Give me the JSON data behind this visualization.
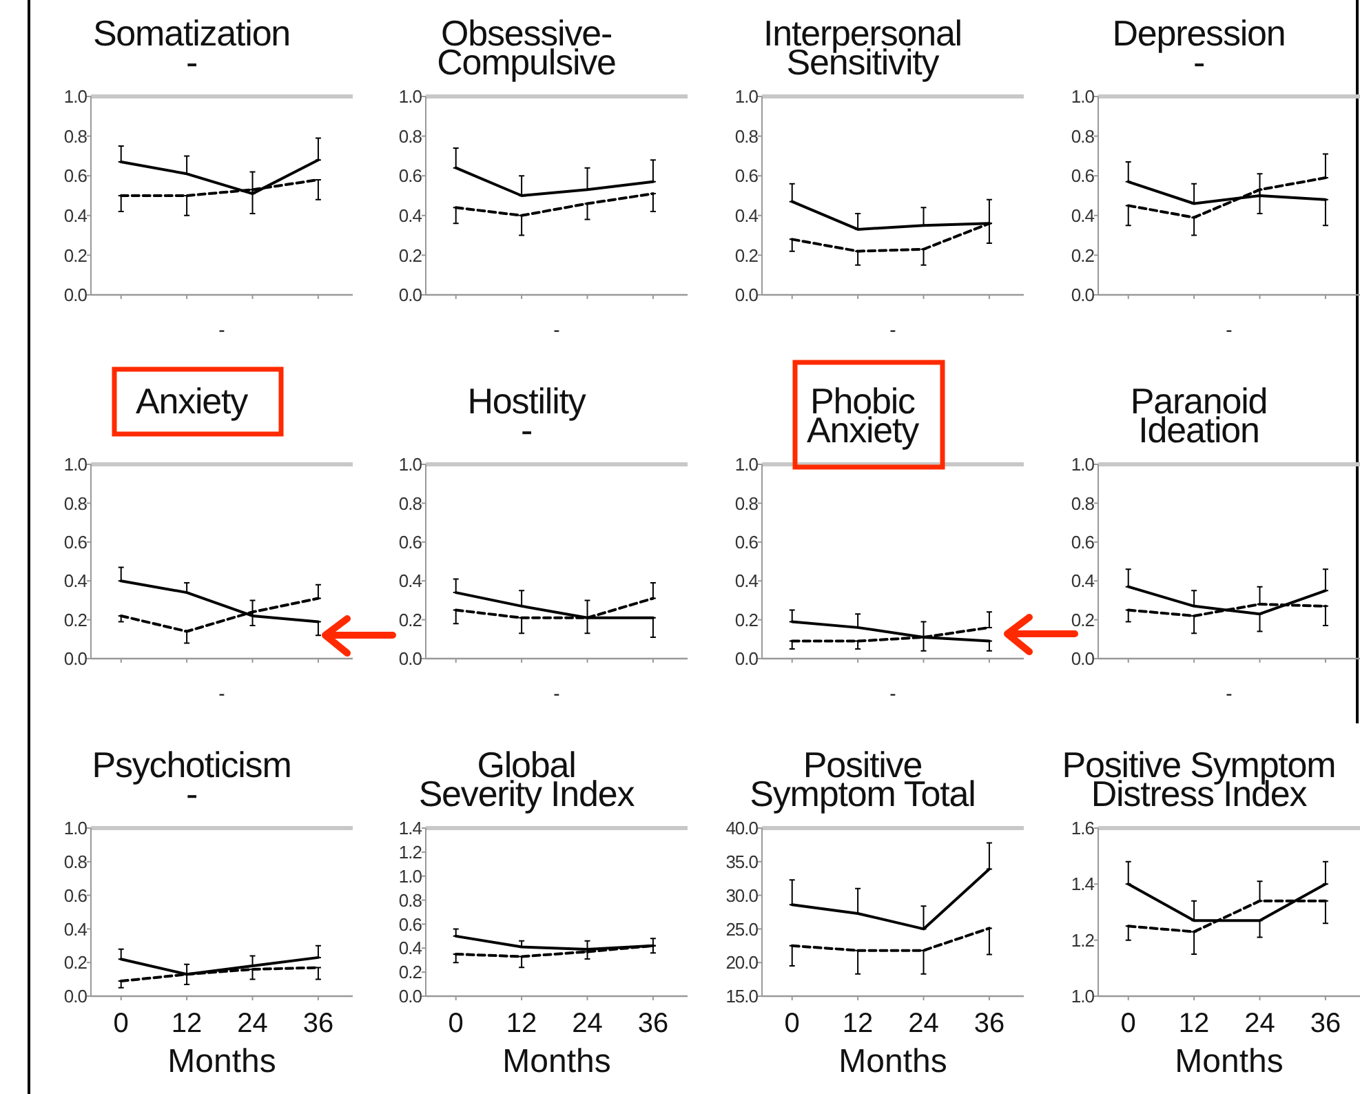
{
  "chart_data": [
    {
      "type": "line",
      "title": "Somatization\n-",
      "xlabel": "-",
      "x": [
        0,
        12,
        24,
        36
      ],
      "xlim": [
        -5.5,
        42.3
      ],
      "xticks": [
        0,
        12,
        24,
        36
      ],
      "tick_labels": "y",
      "ylim": [
        0,
        1
      ],
      "yticks": [
        {
          "value": 0,
          "label": "0.0"
        },
        0.2,
        0.4,
        0.6,
        0.8,
        {
          "value": 1,
          "label": "1.0"
        }
      ],
      "series": [
        {
          "color": "#000000",
          "line_style": "solid",
          "values": [
            0.67,
            0.61,
            0.51,
            0.68
          ],
          "errors": [
            [
              0.67,
              0.75
            ],
            [
              0.61,
              0.7
            ],
            [
              0.51,
              0.62
            ],
            [
              0.68,
              0.79
            ]
          ]
        },
        {
          "color": "#000000",
          "line_style": "dashed",
          "values": [
            0.5,
            0.5,
            0.53,
            0.58
          ],
          "errors": [
            [
              0.42,
              0.5
            ],
            [
              0.4,
              0.5
            ],
            [
              0.41,
              0.53
            ],
            [
              0.48,
              0.58
            ]
          ]
        }
      ]
    },
    {
      "type": "line",
      "title": "Obsessive-\nCompulsive",
      "xlabel": "-",
      "x": [
        0,
        12,
        24,
        36
      ],
      "xlim": [
        -5.5,
        42.3
      ],
      "xticks": [
        0,
        12,
        24,
        36
      ],
      "tick_labels": "y",
      "ylim": [
        0,
        1
      ],
      "yticks": [
        {
          "value": 0,
          "label": "0.0"
        },
        0.2,
        0.4,
        0.6,
        0.8,
        {
          "value": 1,
          "label": "1.0"
        }
      ],
      "series": [
        {
          "color": "#000000",
          "line_style": "solid",
          "values": [
            0.64,
            0.5,
            0.53,
            0.57
          ],
          "errors": [
            [
              0.64,
              0.74
            ],
            [
              0.5,
              0.6
            ],
            [
              0.53,
              0.64
            ],
            [
              0.57,
              0.68
            ]
          ]
        },
        {
          "color": "#000000",
          "line_style": "dashed",
          "values": [
            0.44,
            0.4,
            0.46,
            0.51
          ],
          "errors": [
            [
              0.36,
              0.44
            ],
            [
              0.3,
              0.4
            ],
            [
              0.38,
              0.46
            ],
            [
              0.42,
              0.51
            ]
          ]
        }
      ]
    },
    {
      "type": "line",
      "title": "Interpersonal\nSensitivity",
      "xlabel": "-",
      "x": [
        0,
        12,
        24,
        36
      ],
      "xlim": [
        -5.5,
        42.3
      ],
      "xticks": [
        0,
        12,
        24,
        36
      ],
      "tick_labels": "y",
      "ylim": [
        0,
        1
      ],
      "yticks": [
        {
          "value": 0,
          "label": "0.0"
        },
        0.2,
        0.4,
        0.6,
        0.8,
        {
          "value": 1,
          "label": "1.0"
        }
      ],
      "series": [
        {
          "color": "#000000",
          "line_style": "solid",
          "values": [
            0.47,
            0.33,
            0.35,
            0.36
          ],
          "errors": [
            [
              0.47,
              0.56
            ],
            [
              0.33,
              0.41
            ],
            [
              0.35,
              0.44
            ],
            [
              0.36,
              0.48
            ]
          ]
        },
        {
          "color": "#000000",
          "line_style": "dashed",
          "values": [
            0.28,
            0.22,
            0.23,
            0.36
          ],
          "errors": [
            [
              0.22,
              0.28
            ],
            [
              0.15,
              0.22
            ],
            [
              0.15,
              0.23
            ],
            [
              0.26,
              0.36
            ]
          ]
        }
      ]
    },
    {
      "type": "line",
      "title": "Depression\n-",
      "xlabel": "-",
      "x": [
        0,
        12,
        24,
        36
      ],
      "xlim": [
        -5.5,
        42.3
      ],
      "xticks": [
        0,
        12,
        24,
        36
      ],
      "tick_labels": "y",
      "ylim": [
        0,
        1
      ],
      "yticks": [
        {
          "value": 0,
          "label": "0.0"
        },
        0.2,
        0.4,
        0.6,
        0.8,
        {
          "value": 1,
          "label": "1.0"
        }
      ],
      "series": [
        {
          "color": "#000000",
          "line_style": "solid",
          "values": [
            0.57,
            0.46,
            0.5,
            0.48
          ],
          "errors": [
            [
              0.57,
              0.67
            ],
            [
              0.46,
              0.56
            ],
            [
              0.5,
              0.61
            ],
            [
              0.35,
              0.48
            ]
          ]
        },
        {
          "color": "#000000",
          "line_style": "dashed",
          "values": [
            0.45,
            0.39,
            0.53,
            0.59
          ],
          "errors": [
            [
              0.35,
              0.45
            ],
            [
              0.3,
              0.39
            ],
            [
              0.41,
              0.53
            ],
            [
              0.59,
              0.71
            ]
          ]
        }
      ]
    },
    {
      "type": "line",
      "title": "Anxiety",
      "xlabel": "-",
      "x": [
        0,
        12,
        24,
        36
      ],
      "xlim": [
        -5.5,
        42.3
      ],
      "xticks": [
        0,
        12,
        24,
        36
      ],
      "tick_labels": "y",
      "ylim": [
        0,
        1
      ],
      "yticks": [
        {
          "value": 0,
          "label": "0.0"
        },
        0.2,
        0.4,
        0.6,
        0.8,
        {
          "value": 1,
          "label": "1.0"
        }
      ],
      "series": [
        {
          "color": "#000000",
          "line_style": "solid",
          "values": [
            0.4,
            0.34,
            0.22,
            0.19
          ],
          "errors": [
            [
              0.4,
              0.47
            ],
            [
              0.34,
              0.39
            ],
            [
              0.22,
              0.3
            ],
            [
              0.12,
              0.19
            ]
          ]
        },
        {
          "color": "#000000",
          "line_style": "dashed",
          "values": [
            0.22,
            0.14,
            0.24,
            0.31
          ],
          "errors": [
            [
              0.19,
              0.22
            ],
            [
              0.08,
              0.14
            ],
            [
              0.17,
              0.24
            ],
            [
              0.31,
              0.38
            ]
          ]
        }
      ]
    },
    {
      "type": "line",
      "title": "Hostility\n-",
      "xlabel": "-",
      "x": [
        0,
        12,
        24,
        36
      ],
      "xlim": [
        -5.5,
        42.3
      ],
      "xticks": [
        0,
        12,
        24,
        36
      ],
      "tick_labels": "y",
      "ylim": [
        0,
        1
      ],
      "yticks": [
        {
          "value": 0,
          "label": "0.0"
        },
        0.2,
        0.4,
        0.6,
        0.8,
        {
          "value": 1,
          "label": "1.0"
        }
      ],
      "series": [
        {
          "color": "#000000",
          "line_style": "solid",
          "values": [
            0.34,
            0.27,
            0.21,
            0.21
          ],
          "errors": [
            [
              0.34,
              0.41
            ],
            [
              0.27,
              0.35
            ],
            [
              0.21,
              0.3
            ],
            [
              0.11,
              0.21
            ]
          ]
        },
        {
          "color": "#000000",
          "line_style": "dashed",
          "values": [
            0.25,
            0.21,
            0.21,
            0.31
          ],
          "errors": [
            [
              0.18,
              0.25
            ],
            [
              0.13,
              0.21
            ],
            [
              0.13,
              0.21
            ],
            [
              0.31,
              0.39
            ]
          ]
        }
      ]
    },
    {
      "type": "line",
      "title": "Phobic\nAnxiety",
      "xlabel": "-",
      "x": [
        0,
        12,
        24,
        36
      ],
      "xlim": [
        -5.5,
        42.3
      ],
      "xticks": [
        0,
        12,
        24,
        36
      ],
      "tick_labels": "y",
      "ylim": [
        0,
        1
      ],
      "yticks": [
        {
          "value": 0,
          "label": "0.0"
        },
        0.2,
        0.4,
        0.6,
        0.8,
        {
          "value": 1,
          "label": "1.0"
        }
      ],
      "series": [
        {
          "color": "#000000",
          "line_style": "solid",
          "values": [
            0.19,
            0.16,
            0.11,
            0.09
          ],
          "errors": [
            [
              0.19,
              0.25
            ],
            [
              0.16,
              0.23
            ],
            [
              0.11,
              0.19
            ],
            [
              0.04,
              0.09
            ]
          ]
        },
        {
          "color": "#000000",
          "line_style": "dashed",
          "values": [
            0.09,
            0.09,
            0.11,
            0.16
          ],
          "errors": [
            [
              0.05,
              0.09
            ],
            [
              0.05,
              0.09
            ],
            [
              0.04,
              0.11
            ],
            [
              0.16,
              0.24
            ]
          ]
        }
      ]
    },
    {
      "type": "line",
      "title": "Paranoid\nIdeation",
      "xlabel": "-",
      "x": [
        0,
        12,
        24,
        36
      ],
      "xlim": [
        -5.5,
        42.3
      ],
      "xticks": [
        0,
        12,
        24,
        36
      ],
      "tick_labels": "y",
      "ylim": [
        0,
        1
      ],
      "yticks": [
        {
          "value": 0,
          "label": "0.0"
        },
        0.2,
        0.4,
        0.6,
        0.8,
        {
          "value": 1,
          "label": "1.0"
        }
      ],
      "series": [
        {
          "color": "#000000",
          "line_style": "solid",
          "values": [
            0.37,
            0.27,
            0.23,
            0.35
          ],
          "errors": [
            [
              0.37,
              0.46
            ],
            [
              0.27,
              0.35
            ],
            [
              0.14,
              0.23
            ],
            [
              0.35,
              0.46
            ]
          ]
        },
        {
          "color": "#000000",
          "line_style": "dashed",
          "values": [
            0.25,
            0.22,
            0.28,
            0.27
          ],
          "errors": [
            [
              0.19,
              0.25
            ],
            [
              0.13,
              0.22
            ],
            [
              0.28,
              0.37
            ],
            [
              0.17,
              0.27
            ]
          ]
        }
      ]
    },
    {
      "type": "line",
      "title": "Psychoticism\n-",
      "xlabel": "Months",
      "x": [
        0,
        12,
        24,
        36
      ],
      "xlim": [
        -5.5,
        42.3
      ],
      "xticks": [
        0,
        12,
        24,
        36
      ],
      "ylim": [
        0,
        1
      ],
      "yticks": [
        {
          "value": 0,
          "label": "0.0"
        },
        0.2,
        0.4,
        0.6,
        0.8,
        {
          "value": 1,
          "label": "1.0"
        }
      ],
      "series": [
        {
          "color": "#000000",
          "line_style": "solid",
          "values": [
            0.22,
            0.13,
            0.18,
            0.23
          ],
          "errors": [
            [
              0.22,
              0.28
            ],
            [
              0.13,
              0.19
            ],
            [
              0.18,
              0.24
            ],
            [
              0.23,
              0.3
            ]
          ]
        },
        {
          "color": "#000000",
          "line_style": "dashed",
          "values": [
            0.09,
            0.13,
            0.16,
            0.17
          ],
          "errors": [
            [
              0.05,
              0.09
            ],
            [
              0.07,
              0.13
            ],
            [
              0.1,
              0.16
            ],
            [
              0.1,
              0.17
            ]
          ]
        }
      ]
    },
    {
      "type": "line",
      "title": "Global\nSeverity Index",
      "xlabel": "Months",
      "x": [
        0,
        12,
        24,
        36
      ],
      "xlim": [
        -5.5,
        42.3
      ],
      "xticks": [
        0,
        12,
        24,
        36
      ],
      "ylim": [
        0,
        1.4
      ],
      "yticks": [
        {
          "value": 0,
          "label": "0.0"
        },
        0.2,
        0.4,
        0.6,
        0.8,
        {
          "value": 1,
          "label": "1.0"
        },
        1.2,
        1.4
      ],
      "series": [
        {
          "color": "#000000",
          "line_style": "solid",
          "values": [
            0.5,
            0.41,
            0.39,
            0.42
          ],
          "errors": [
            [
              0.5,
              0.56
            ],
            [
              0.41,
              0.46
            ],
            [
              0.39,
              0.46
            ],
            [
              0.42,
              0.48
            ]
          ]
        },
        {
          "color": "#000000",
          "line_style": "dashed",
          "values": [
            0.35,
            0.33,
            0.37,
            0.42
          ],
          "errors": [
            [
              0.28,
              0.35
            ],
            [
              0.24,
              0.33
            ],
            [
              0.31,
              0.37
            ],
            [
              0.36,
              0.42
            ]
          ]
        }
      ]
    },
    {
      "type": "line",
      "title": "Positive\nSymptom Total",
      "xlabel": "Months",
      "x": [
        0,
        12,
        24,
        36
      ],
      "xlim": [
        -5.5,
        42.3
      ],
      "xticks": [
        0,
        12,
        24,
        36
      ],
      "ylim": [
        15,
        40
      ],
      "yticks": [
        {
          "value": 15,
          "label": "15.0"
        },
        {
          "value": 20,
          "label": "20.0"
        },
        {
          "value": 25,
          "label": "25.0"
        },
        {
          "value": 30,
          "label": "30.0"
        },
        {
          "value": 35,
          "label": "35.0"
        },
        {
          "value": 40,
          "label": "40.0"
        }
      ],
      "series": [
        {
          "color": "#000000",
          "line_style": "solid",
          "values": [
            28.6,
            27.3,
            25,
            33.9
          ],
          "errors": [
            [
              28.6,
              32.3
            ],
            [
              27.3,
              31
            ],
            [
              25,
              28.4
            ],
            [
              33.9,
              37.8
            ]
          ]
        },
        {
          "color": "#000000",
          "line_style": "dashed",
          "values": [
            22.5,
            21.8,
            21.8,
            25.1
          ],
          "errors": [
            [
              19.5,
              22.5
            ],
            [
              18.3,
              21.8
            ],
            [
              18.3,
              21.8
            ],
            [
              21.2,
              25.1
            ]
          ]
        }
      ]
    },
    {
      "type": "line",
      "title": "Positive Symptom\nDistress Index",
      "xlabel": "Months",
      "x": [
        0,
        12,
        24,
        36
      ],
      "xlim": [
        -5.5,
        42.3
      ],
      "xticks": [
        0,
        12,
        24,
        36
      ],
      "ylim": [
        1,
        1.6
      ],
      "yticks": [
        {
          "value": 1,
          "label": "1.0"
        },
        1.2,
        1.4,
        1.6
      ],
      "series": [
        {
          "color": "#000000",
          "line_style": "solid",
          "values": [
            1.4,
            1.27,
            1.27,
            1.4
          ],
          "errors": [
            [
              1.4,
              1.48
            ],
            [
              1.27,
              1.34
            ],
            [
              1.21,
              1.27
            ],
            [
              1.4,
              1.48
            ]
          ]
        },
        {
          "color": "#000000",
          "line_style": "dashed",
          "values": [
            1.25,
            1.23,
            1.34,
            1.34
          ],
          "errors": [
            [
              1.2,
              1.25
            ],
            [
              1.15,
              1.23
            ],
            [
              1.34,
              1.41
            ],
            [
              1.26,
              1.34
            ]
          ]
        }
      ]
    }
  ]
}
